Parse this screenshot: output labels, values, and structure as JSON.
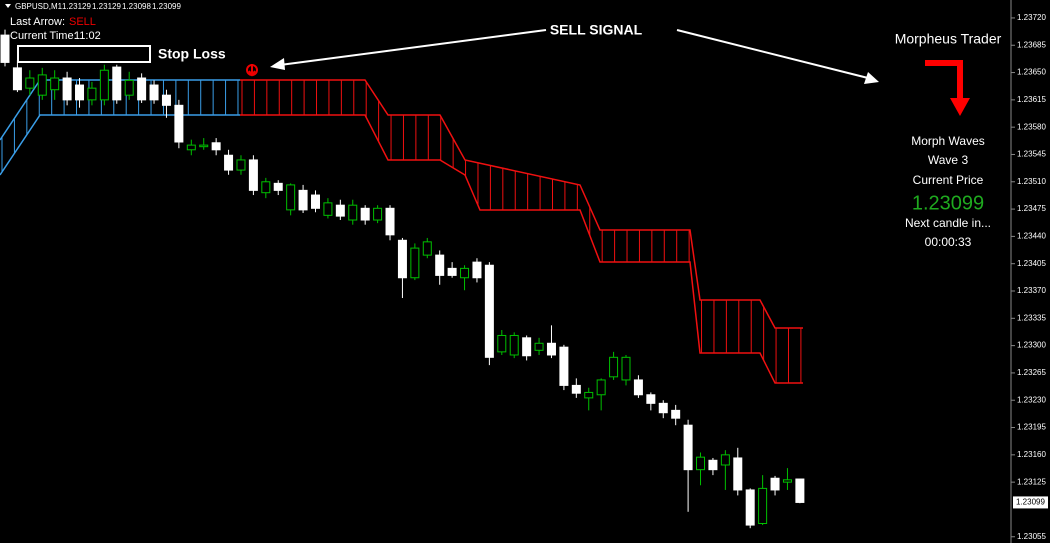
{
  "chart_data": {
    "type": "candlestick",
    "symbol": "GBPUSD,M1",
    "up_color": "#00c000",
    "down_color": "#ffffff",
    "open": [
      1.23698,
      1.23656,
      1.2363,
      1.23621,
      1.23628,
      1.23643,
      1.23634,
      1.23615,
      1.23615,
      1.23657,
      1.23621,
      1.23643,
      1.23634,
      1.23621,
      1.23608,
      1.23551,
      1.23555,
      1.2356,
      1.23544,
      1.23525,
      1.23538,
      1.23496,
      1.23508,
      1.23474,
      1.23499,
      1.23493,
      1.23467,
      1.2348,
      1.23461,
      1.23476,
      1.23461,
      1.23476,
      1.23435,
      1.23387,
      1.23416,
      1.23416,
      1.23399,
      1.23387,
      1.23407,
      1.23403,
      1.23292,
      1.23288,
      1.2331,
      1.23294,
      1.23303,
      1.23298,
      1.23249,
      1.23233,
      1.23237,
      1.2326,
      1.23256,
      1.23256,
      1.23237,
      1.23226,
      1.23217,
      1.23198,
      1.23141,
      1.23153,
      1.23147,
      1.23156,
      1.23115,
      1.23072,
      1.2313,
      1.23125,
      1.23129
    ],
    "high": [
      1.23705,
      1.23666,
      1.23653,
      1.23656,
      1.23653,
      1.23651,
      1.23643,
      1.23638,
      1.2366,
      1.2366,
      1.23651,
      1.23649,
      1.2364,
      1.23628,
      1.23615,
      1.23564,
      1.23566,
      1.23566,
      1.23551,
      1.23544,
      1.23544,
      1.23515,
      1.23512,
      1.23508,
      1.23506,
      1.23499,
      1.23489,
      1.23487,
      1.23487,
      1.2348,
      1.2348,
      1.2348,
      1.23438,
      1.23431,
      1.23438,
      1.23422,
      1.23407,
      1.23403,
      1.23412,
      1.23407,
      1.2332,
      1.23317,
      1.23313,
      1.2331,
      1.23326,
      1.23301,
      1.23258,
      1.23246,
      1.23258,
      1.23292,
      1.23288,
      1.23262,
      1.2324,
      1.2323,
      1.23224,
      1.23205,
      1.23163,
      1.23156,
      1.23166,
      1.23169,
      1.23117,
      1.23134,
      1.23133,
      1.23143,
      1.23129
    ],
    "low": [
      1.23658,
      1.23625,
      1.23621,
      1.23615,
      1.23615,
      1.23608,
      1.23605,
      1.23608,
      1.23608,
      1.2361,
      1.23615,
      1.23611,
      1.2361,
      1.23592,
      1.23553,
      1.23544,
      1.23551,
      1.23544,
      1.23519,
      1.23519,
      1.23493,
      1.23489,
      1.23493,
      1.23467,
      1.2347,
      1.23471,
      1.23463,
      1.23461,
      1.23455,
      1.23455,
      1.23457,
      1.23435,
      1.23361,
      1.23384,
      1.23412,
      1.23378,
      1.23387,
      1.23371,
      1.23381,
      1.23275,
      1.23288,
      1.23284,
      1.23281,
      1.23288,
      1.23284,
      1.23243,
      1.23233,
      1.23217,
      1.23217,
      1.23256,
      1.23249,
      1.23233,
      1.23217,
      1.23207,
      1.23198,
      1.23087,
      1.23121,
      1.23134,
      1.23115,
      1.23108,
      1.23066,
      1.2307,
      1.23108,
      1.23115,
      1.23098
    ],
    "close": [
      1.23663,
      1.23628,
      1.23643,
      1.23647,
      1.23643,
      1.23615,
      1.23615,
      1.2363,
      1.23653,
      1.23615,
      1.2364,
      1.23615,
      1.23615,
      1.23608,
      1.23561,
      1.23557,
      1.23557,
      1.23551,
      1.23525,
      1.23538,
      1.23499,
      1.2351,
      1.23499,
      1.23506,
      1.23474,
      1.23476,
      1.23483,
      1.23466,
      1.2348,
      1.23461,
      1.23476,
      1.23442,
      1.23387,
      1.23425,
      1.23433,
      1.2339,
      1.2339,
      1.23399,
      1.23387,
      1.23285,
      1.23313,
      1.23313,
      1.23287,
      1.23303,
      1.23288,
      1.23249,
      1.23239,
      1.2324,
      1.23256,
      1.23285,
      1.23285,
      1.23237,
      1.23226,
      1.23214,
      1.23207,
      1.23141,
      1.23157,
      1.23141,
      1.2316,
      1.23115,
      1.2307,
      1.23117,
      1.23115,
      1.23128,
      1.23099
    ],
    "ylim": [
      1.23047,
      1.23743
    ],
    "yticks": [
      {
        "value": 1.2372,
        "label": "1.23720"
      },
      {
        "value": 1.23685,
        "label": "1.23685"
      },
      {
        "value": 1.2365,
        "label": "1.23650"
      },
      {
        "value": 1.23615,
        "label": "1.23615"
      },
      {
        "value": 1.2358,
        "label": "1.23580"
      },
      {
        "value": 1.23545,
        "label": "1.23545"
      },
      {
        "value": 1.2351,
        "label": "1.23510"
      },
      {
        "value": 1.23475,
        "label": "1.23475"
      },
      {
        "value": 1.2344,
        "label": "1.23440"
      },
      {
        "value": 1.23405,
        "label": "1.23405"
      },
      {
        "value": 1.2337,
        "label": "1.23370"
      },
      {
        "value": 1.23335,
        "label": "1.23335"
      },
      {
        "value": 1.233,
        "label": "1.23300"
      },
      {
        "value": 1.23265,
        "label": "1.23265"
      },
      {
        "value": 1.2323,
        "label": "1.23230"
      },
      {
        "value": 1.23195,
        "label": "1.23195"
      },
      {
        "value": 1.2316,
        "label": "1.23160"
      },
      {
        "value": 1.23125,
        "label": "1.23125"
      },
      {
        "value": 1.23055,
        "label": "1.23055"
      }
    ]
  },
  "info": {
    "last_arrow_label": "Last Arrow:",
    "last_arrow": "SELL",
    "time_label": "Current Time:",
    "time": "11:02"
  },
  "annotations": {
    "stop_loss": "Stop Loss",
    "signal": "SELL SIGNAL"
  },
  "panel": {
    "title": "Morpheus Trader",
    "waves": "Morph Waves",
    "wave": "Wave 3",
    "price_label": "Current Price",
    "next": "Next candle in...",
    "countdown": "00:00:33"
  }
}
